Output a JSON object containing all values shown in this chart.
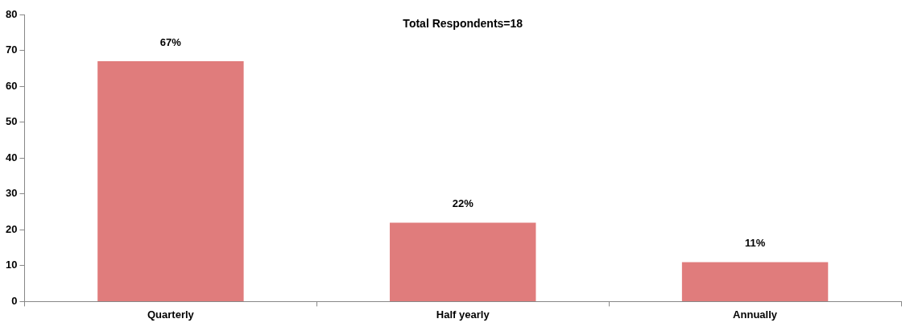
{
  "chart_data": {
    "type": "bar",
    "title": "Total Respondents=18",
    "categories": [
      "Quarterly",
      "Half yearly",
      "Annually"
    ],
    "values": [
      67,
      22,
      11
    ],
    "value_labels": [
      "67%",
      "22%",
      "11%"
    ],
    "color": "#e07c7c",
    "ylim": [
      0,
      80
    ],
    "yticks": [
      0,
      10,
      20,
      30,
      40,
      50,
      60,
      70,
      80
    ],
    "grid": false,
    "legend": false
  }
}
